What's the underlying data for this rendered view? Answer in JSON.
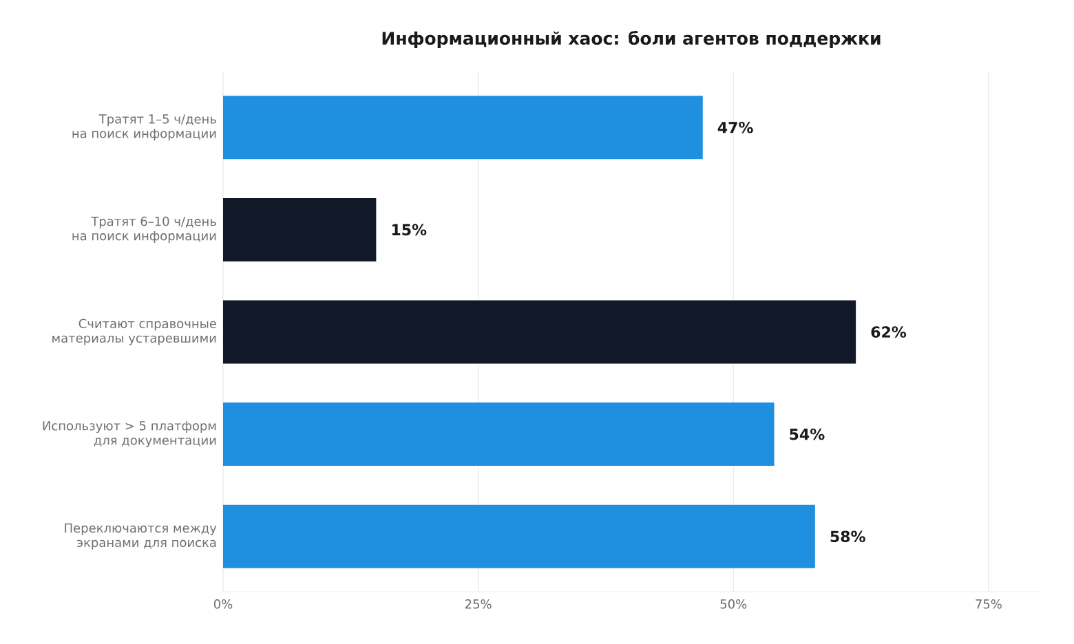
{
  "chart_data": {
    "type": "bar",
    "orientation": "horizontal",
    "title": "Информационный хаос: боли агентов поддержки",
    "categories": [
      "Тратят 1–5 ч/день\nна поиск информации",
      "Тратят 6–10 ч/день\nна поиск информации",
      "Считают справочные\nматериалы устаревшими",
      "Используют > 5 платформ\nдля документации",
      "Переключаются между\nэкранами для поиска"
    ],
    "values": [
      47,
      15,
      62,
      54,
      58
    ],
    "colors": [
      "#1f8fe0",
      "#111827",
      "#111827",
      "#1f8fe0",
      "#1f8fe0"
    ],
    "value_labels": [
      "47%",
      "15%",
      "62%",
      "54%",
      "58%"
    ],
    "xlim": [
      0,
      80
    ],
    "xticks": [
      {
        "value": 0,
        "label": "0%"
      },
      {
        "value": 25,
        "label": "25%"
      },
      {
        "value": 50,
        "label": "50%"
      },
      {
        "value": 75,
        "label": "75%"
      }
    ],
    "grid": "x"
  }
}
